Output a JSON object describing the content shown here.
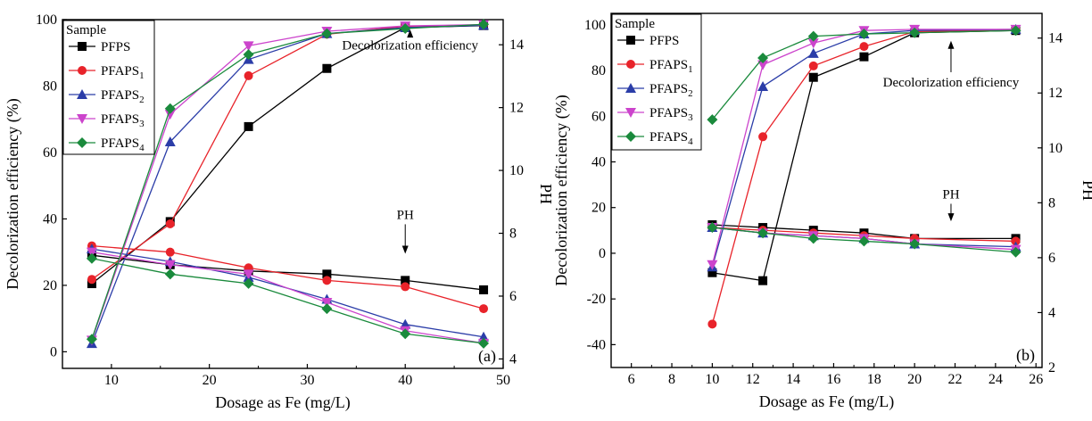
{
  "chart_data": [
    {
      "type": "line",
      "panel_label": "(a)",
      "xlabel": "Dosage as Fe (mg/L)",
      "ylabel": "Decolorization efficiency (%)",
      "y2label": "PH",
      "xlim": [
        5,
        50
      ],
      "ylim": [
        -5,
        100
      ],
      "y2lim": [
        3.7,
        14.8
      ],
      "xticks": [
        10,
        20,
        30,
        40,
        50
      ],
      "yticks": [
        0,
        20,
        40,
        60,
        80,
        100
      ],
      "y2ticks": [
        4,
        6,
        8,
        10,
        12,
        14
      ],
      "legend": {
        "title": "Sample",
        "position": "top-left"
      },
      "annotations": [
        {
          "text": "Decolorization efficiency",
          "x": 40.5,
          "y": 91,
          "arrow_to": [
            40.5,
            97
          ]
        },
        {
          "text": "PH",
          "x": 40,
          "y": 40,
          "arrow_to": [
            40,
            29.5
          ]
        }
      ],
      "x": [
        8,
        16,
        24,
        32,
        40,
        48
      ],
      "series": [
        {
          "name": "PFPS",
          "sub": "",
          "color": "#000000",
          "marker": "square",
          "efficiency": [
            20.5,
            39.2,
            67.8,
            85.3,
            97.6,
            98.2
          ],
          "ph": [
            7.3,
            7.0,
            6.8,
            6.7,
            6.5,
            6.2
          ]
        },
        {
          "name": "PFAPS",
          "sub": "1",
          "color": "#e8232a",
          "marker": "circle",
          "efficiency": [
            21.8,
            38.5,
            83.1,
            95.6,
            98.0,
            98.4
          ],
          "ph": [
            7.6,
            7.4,
            6.9,
            6.5,
            6.3,
            5.6
          ]
        },
        {
          "name": "PFAPS",
          "sub": "2",
          "color": "#2b3da8",
          "marker": "triangle-up",
          "efficiency": [
            2.5,
            63.2,
            88.0,
            95.8,
            97.6,
            98.3
          ],
          "ph": [
            7.5,
            7.1,
            6.6,
            5.9,
            5.1,
            4.7
          ]
        },
        {
          "name": "PFAPS",
          "sub": "3",
          "color": "#cc44cc",
          "marker": "triangle-down",
          "efficiency": [
            3.5,
            71.5,
            92.1,
            96.5,
            98.1,
            98.5
          ],
          "ph": [
            7.4,
            7.0,
            6.7,
            5.8,
            4.9,
            4.5
          ]
        },
        {
          "name": "PFAPS",
          "sub": "4",
          "color": "#1a8a3c",
          "marker": "diamond",
          "efficiency": [
            3.8,
            73.2,
            89.5,
            95.8,
            97.3,
            98.6
          ],
          "ph": [
            7.2,
            6.7,
            6.4,
            5.6,
            4.8,
            4.5
          ]
        }
      ]
    },
    {
      "type": "line",
      "panel_label": "(b)",
      "xlabel": "Dosage as Fe (mg/L)",
      "ylabel": "Decolorization efficiency (%)",
      "y2label": "PH",
      "xlim": [
        5,
        26.3
      ],
      "ylim": [
        -50,
        105
      ],
      "y2lim": [
        2,
        14.9
      ],
      "xticks": [
        6,
        8,
        10,
        12,
        14,
        16,
        18,
        20,
        22,
        24,
        26
      ],
      "yticks": [
        -40,
        -20,
        0,
        20,
        40,
        60,
        80,
        100
      ],
      "y2ticks": [
        2,
        4,
        6,
        8,
        10,
        12,
        14
      ],
      "legend": {
        "title": "Sample",
        "position": "top-left"
      },
      "annotations": [
        {
          "text": "Decolorization efficiency",
          "x": 21.8,
          "y": 73,
          "arrow_to": [
            21.8,
            93
          ]
        },
        {
          "text": "PH",
          "x": 21.8,
          "y": 24,
          "arrow_to": [
            21.8,
            14
          ]
        }
      ],
      "x": [
        10,
        12.5,
        15,
        17.5,
        20,
        25
      ],
      "series": [
        {
          "name": "PFPS",
          "sub": "",
          "color": "#000000",
          "marker": "square",
          "efficiency": [
            -8.5,
            -12.0,
            77.0,
            86.0,
            96.5,
            97.5
          ],
          "ph": [
            7.2,
            7.1,
            7.0,
            6.9,
            6.7,
            6.7
          ]
        },
        {
          "name": "PFAPS",
          "sub": "1",
          "color": "#e8232a",
          "marker": "circle",
          "efficiency": [
            -31.0,
            51.0,
            82.0,
            90.5,
            97.0,
            97.8
          ],
          "ph": [
            7.1,
            7.0,
            6.9,
            6.8,
            6.7,
            6.6
          ]
        },
        {
          "name": "PFAPS",
          "sub": "2",
          "color": "#2b3da8",
          "marker": "triangle-up",
          "efficiency": [
            -6.0,
            73.0,
            87.5,
            96.0,
            97.5,
            98.0
          ],
          "ph": [
            7.1,
            6.9,
            6.8,
            6.7,
            6.5,
            6.4
          ]
        },
        {
          "name": "PFAPS",
          "sub": "3",
          "color": "#cc44cc",
          "marker": "triangle-down",
          "efficiency": [
            -5.0,
            82.5,
            92.0,
            97.5,
            98.0,
            98.0
          ],
          "ph": [
            7.1,
            6.9,
            6.8,
            6.7,
            6.5,
            6.3
          ]
        },
        {
          "name": "PFAPS",
          "sub": "4",
          "color": "#1a8a3c",
          "marker": "diamond",
          "efficiency": [
            58.5,
            85.5,
            95.0,
            96.0,
            96.5,
            97.5
          ],
          "ph": [
            7.1,
            6.9,
            6.7,
            6.6,
            6.5,
            6.2
          ]
        }
      ]
    }
  ]
}
